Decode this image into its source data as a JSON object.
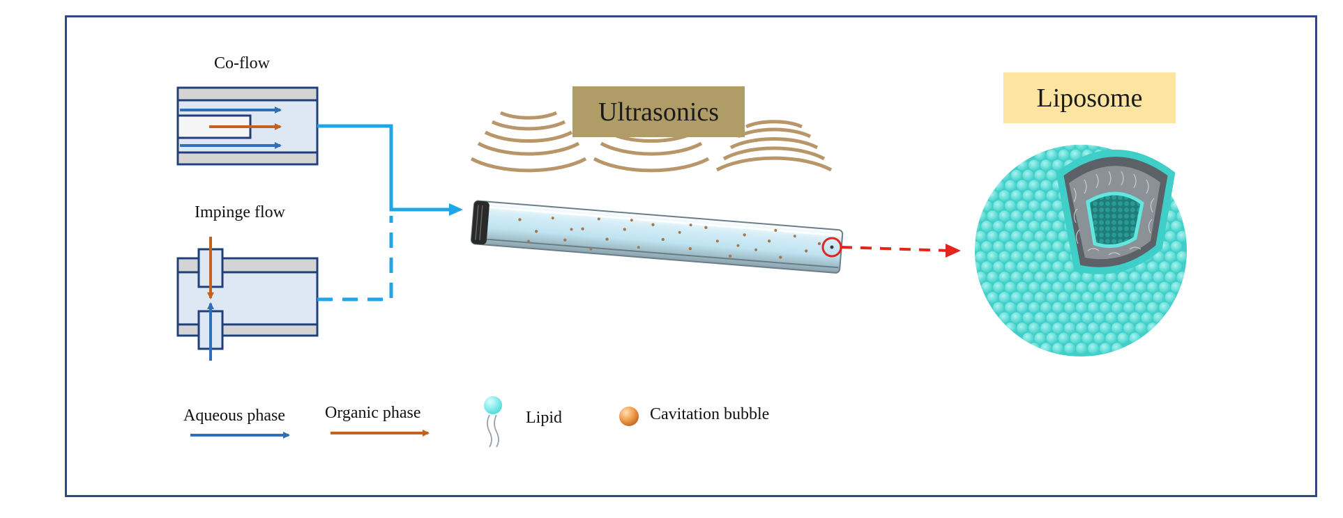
{
  "diagram": {
    "coflow_label": "Co-flow",
    "impinge_label": "Impinge flow",
    "ultrasonics_label": "Ultrasonics",
    "liposome_label": "Liposome"
  },
  "legend": {
    "aqueous_label": "Aqueous phase",
    "organic_label": "Organic phase",
    "lipid_label": "Lipid",
    "bubble_label": "Cavitation bubble"
  },
  "colors": {
    "frame": "#2e4a86",
    "aqueous_arrow": "#2e6fb8",
    "organic_arrow": "#c5611e",
    "flow_line": "#1ea7e8",
    "highlight": "#e3241b",
    "liposome_sphere": "#5fe3dc",
    "ultrasonics_bg": "#b09c67",
    "liposome_bg": "#fde4a0"
  }
}
